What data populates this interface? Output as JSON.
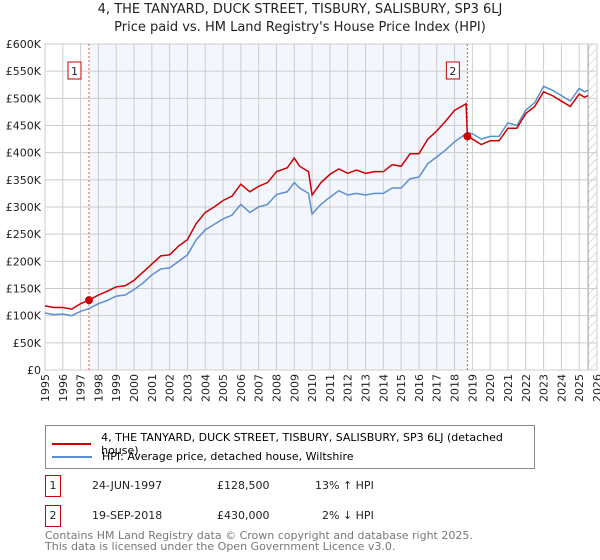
{
  "chart_data": {
    "type": "line",
    "title": "4, THE TANYARD, DUCK STREET, TISBURY, SALISBURY, SP3 6LJ",
    "subtitle": "Price paid vs. HM Land Registry's House Price Index (HPI)",
    "xlim": [
      1995,
      2026
    ],
    "ylim": [
      0,
      600000
    ],
    "yticks": [
      {
        "v": 0,
        "l": "£0"
      },
      {
        "v": 50000,
        "l": "£50K"
      },
      {
        "v": 100000,
        "l": "£100K"
      },
      {
        "v": 150000,
        "l": "£150K"
      },
      {
        "v": 200000,
        "l": "£200K"
      },
      {
        "v": 250000,
        "l": "£250K"
      },
      {
        "v": 300000,
        "l": "£300K"
      },
      {
        "v": 350000,
        "l": "£350K"
      },
      {
        "v": 400000,
        "l": "£400K"
      },
      {
        "v": 450000,
        "l": "£450K"
      },
      {
        "v": 500000,
        "l": "£500K"
      },
      {
        "v": 550000,
        "l": "£550K"
      },
      {
        "v": 600000,
        "l": "£600K"
      }
    ],
    "xticks": [
      "1995",
      "1996",
      "1997",
      "1998",
      "1999",
      "2000",
      "2001",
      "2002",
      "2003",
      "2004",
      "2005",
      "2006",
      "2007",
      "2008",
      "2009",
      "2010",
      "2011",
      "2012",
      "2013",
      "2014",
      "2015",
      "2016",
      "2017",
      "2018",
      "2019",
      "2020",
      "2021",
      "2022",
      "2023",
      "2024",
      "2025",
      "2026"
    ],
    "grid": true,
    "series": [
      {
        "name": "4, THE TANYARD, DUCK STREET, TISBURY, SALISBURY, SP3 6LJ (detached house)",
        "color": "#cc0000",
        "x": [
          1995,
          1995.5,
          1996,
          1996.5,
          1997,
          1997.47,
          1998,
          1998.5,
          1999,
          1999.5,
          2000,
          2000.5,
          2001,
          2001.5,
          2002,
          2002.5,
          2003,
          2003.5,
          2004,
          2004.5,
          2005,
          2005.5,
          2006,
          2006.5,
          2007,
          2007.5,
          2008,
          2008.6,
          2009,
          2009.3,
          2009.8,
          2010,
          2010.5,
          2011,
          2011.5,
          2012,
          2012.5,
          2013,
          2013.5,
          2014,
          2014.5,
          2015,
          2015.5,
          2016,
          2016.5,
          2017,
          2017.5,
          2018,
          2018.65,
          2018.72,
          2019,
          2019.5,
          2020,
          2020.5,
          2021,
          2021.5,
          2022,
          2022.5,
          2023,
          2023.5,
          2024,
          2024.5,
          2025,
          2025.3,
          2025.5
        ],
        "y": [
          118000,
          115000,
          115000,
          112000,
          122000,
          128500,
          138000,
          145000,
          153000,
          155000,
          165000,
          180000,
          195000,
          210000,
          212000,
          228000,
          240000,
          270000,
          290000,
          300000,
          312000,
          320000,
          342000,
          328000,
          338000,
          345000,
          365000,
          372000,
          390000,
          375000,
          365000,
          322000,
          345000,
          360000,
          370000,
          362000,
          368000,
          362000,
          365000,
          365000,
          378000,
          375000,
          398000,
          398000,
          425000,
          440000,
          458000,
          478000,
          490000,
          430000,
          425000,
          415000,
          422000,
          422000,
          445000,
          445000,
          472000,
          485000,
          512000,
          505000,
          495000,
          485000,
          508000,
          502000,
          505000
        ]
      },
      {
        "name": "HPI: Average price, detached house, Wiltshire",
        "color": "#5b8fd0",
        "x": [
          1995,
          1995.5,
          1996,
          1996.5,
          1997,
          1997.47,
          1998,
          1998.5,
          1999,
          1999.5,
          2000,
          2000.5,
          2001,
          2001.5,
          2002,
          2002.5,
          2003,
          2003.5,
          2004,
          2004.5,
          2005,
          2005.5,
          2006,
          2006.5,
          2007,
          2007.5,
          2008,
          2008.6,
          2009,
          2009.3,
          2009.8,
          2010,
          2010.5,
          2011,
          2011.5,
          2012,
          2012.5,
          2013,
          2013.5,
          2014,
          2014.5,
          2015,
          2015.5,
          2016,
          2016.5,
          2017,
          2017.5,
          2018,
          2018.65,
          2018.72,
          2019,
          2019.5,
          2020,
          2020.5,
          2021,
          2021.5,
          2022,
          2022.5,
          2023,
          2023.5,
          2024,
          2024.5,
          2025,
          2025.3,
          2025.5
        ],
        "y": [
          105000,
          102000,
          103000,
          100000,
          108000,
          113000,
          122000,
          128000,
          136000,
          138000,
          148000,
          160000,
          175000,
          186000,
          188000,
          200000,
          212000,
          240000,
          258000,
          268000,
          278000,
          285000,
          305000,
          290000,
          300000,
          305000,
          323000,
          328000,
          345000,
          335000,
          325000,
          287000,
          305000,
          318000,
          330000,
          322000,
          325000,
          322000,
          325000,
          325000,
          335000,
          335000,
          352000,
          355000,
          380000,
          392000,
          405000,
          420000,
          435000,
          437000,
          435000,
          425000,
          430000,
          430000,
          455000,
          450000,
          478000,
          492000,
          522000,
          515000,
          505000,
          495000,
          518000,
          512000,
          515000
        ]
      }
    ],
    "annotations": [
      {
        "label": "1",
        "x": 1997.47,
        "y": 128500,
        "date": "24-JUN-1997",
        "price": "£128,500",
        "hpi": "13% ↑ HPI"
      },
      {
        "label": "2",
        "x": 2018.72,
        "y": 430000,
        "date": "19-SEP-2018",
        "price": "£430,000",
        "hpi": "2% ↓ HPI"
      }
    ],
    "shaded_range": [
      1997.47,
      2018.72
    ],
    "hatched_from": 2025.5
  },
  "footer": [
    "Contains HM Land Registry data © Crown copyright and database right 2025.",
    "This data is licensed under the Open Government Licence v3.0."
  ]
}
